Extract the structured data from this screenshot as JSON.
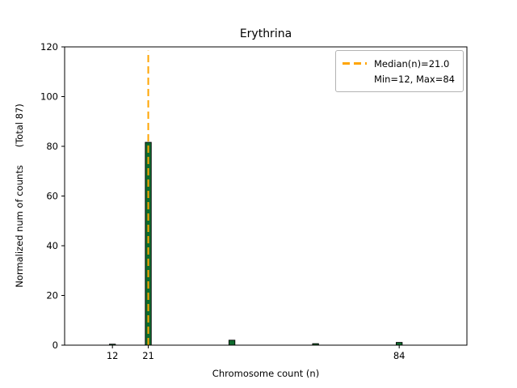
{
  "chart_data": {
    "type": "bar",
    "title": "Erythrina",
    "xlabel": "Chromosome count (n)",
    "ylabel": "Normalized num of counts      (Total 87)",
    "xlim": [
      0,
      101
    ],
    "ylim": [
      0,
      120
    ],
    "xticks": [
      12,
      21,
      84
    ],
    "yticks": [
      0,
      20,
      40,
      60,
      80,
      100,
      120
    ],
    "grid": false,
    "bar_width": 1.5,
    "bar_color": "#0e6b2d",
    "bar_edge_color": "#000000",
    "bars": [
      {
        "x": 12,
        "height": 0.4
      },
      {
        "x": 21,
        "height": 81.6
      },
      {
        "x": 42,
        "height": 2.0
      },
      {
        "x": 63,
        "height": 0.6
      },
      {
        "x": 84,
        "height": 1.1
      }
    ],
    "median_line": {
      "x": 21,
      "ymax": 118.5,
      "color": "#ffa500",
      "label": "Median(n)=21.0"
    },
    "legend": {
      "position": "upper-right",
      "entries": [
        {
          "label": "Median(n)=21.0",
          "swatch": "dashed-line",
          "color": "#ffa500"
        },
        {
          "label": "Min=12, Max=84",
          "swatch": "none"
        }
      ]
    },
    "axis_color": "#000000",
    "background": "#ffffff"
  }
}
